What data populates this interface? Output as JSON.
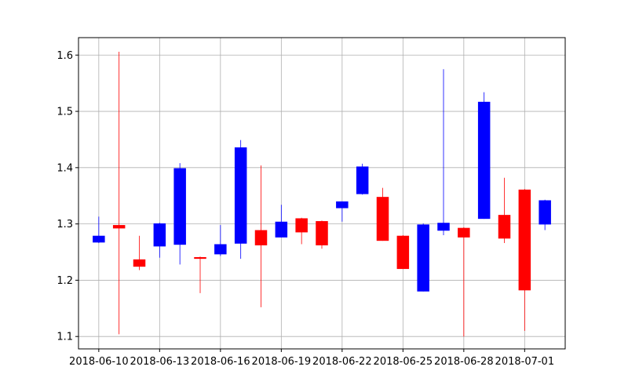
{
  "chart_data": {
    "type": "candlestick",
    "title": "",
    "xlabel": "",
    "ylabel": "",
    "grid": true,
    "colors": {
      "up": "#0000ff",
      "down": "#ff0000"
    },
    "ylim": [
      1.078,
      1.631
    ],
    "xlim": [
      "2018-06-09",
      "2018-07-03"
    ],
    "y_ticks": [
      "1.1",
      "1.2",
      "1.3",
      "1.4",
      "1.5",
      "1.6"
    ],
    "x_ticks": [
      "2018-06-10",
      "2018-06-13",
      "2018-06-16",
      "2018-06-19",
      "2018-06-22",
      "2018-06-25",
      "2018-06-28",
      "2018-07-01"
    ],
    "candles": [
      {
        "date": "2018-06-10",
        "open": 1.267,
        "high": 1.313,
        "low": 1.266,
        "close": 1.279
      },
      {
        "date": "2018-06-11",
        "open": 1.298,
        "high": 1.606,
        "low": 1.104,
        "close": 1.292
      },
      {
        "date": "2018-06-12",
        "open": 1.237,
        "high": 1.279,
        "low": 1.218,
        "close": 1.224
      },
      {
        "date": "2018-06-13",
        "open": 1.26,
        "high": 1.302,
        "low": 1.24,
        "close": 1.301
      },
      {
        "date": "2018-06-14",
        "open": 1.263,
        "high": 1.408,
        "low": 1.228,
        "close": 1.399
      },
      {
        "date": "2018-06-15",
        "open": 1.241,
        "high": 1.242,
        "low": 1.177,
        "close": 1.238
      },
      {
        "date": "2018-06-16",
        "open": 1.246,
        "high": 1.298,
        "low": 1.243,
        "close": 1.264
      },
      {
        "date": "2018-06-17",
        "open": 1.265,
        "high": 1.449,
        "low": 1.238,
        "close": 1.436
      },
      {
        "date": "2018-06-18",
        "open": 1.289,
        "high": 1.404,
        "low": 1.152,
        "close": 1.262
      },
      {
        "date": "2018-06-19",
        "open": 1.276,
        "high": 1.334,
        "low": 1.276,
        "close": 1.304
      },
      {
        "date": "2018-06-20",
        "open": 1.31,
        "high": 1.311,
        "low": 1.264,
        "close": 1.285
      },
      {
        "date": "2018-06-21",
        "open": 1.305,
        "high": 1.306,
        "low": 1.256,
        "close": 1.262
      },
      {
        "date": "2018-06-22",
        "open": 1.328,
        "high": 1.34,
        "low": 1.304,
        "close": 1.34
      },
      {
        "date": "2018-06-23",
        "open": 1.353,
        "high": 1.407,
        "low": 1.352,
        "close": 1.402
      },
      {
        "date": "2018-06-24",
        "open": 1.348,
        "high": 1.364,
        "low": 1.27,
        "close": 1.27
      },
      {
        "date": "2018-06-25",
        "open": 1.279,
        "high": 1.28,
        "low": 1.22,
        "close": 1.22
      },
      {
        "date": "2018-06-26",
        "open": 1.18,
        "high": 1.301,
        "low": 1.18,
        "close": 1.299
      },
      {
        "date": "2018-06-27",
        "open": 1.288,
        "high": 1.575,
        "low": 1.28,
        "close": 1.302
      },
      {
        "date": "2018-06-28",
        "open": 1.293,
        "high": 1.294,
        "low": 1.1,
        "close": 1.276
      },
      {
        "date": "2018-06-29",
        "open": 1.309,
        "high": 1.534,
        "low": 1.309,
        "close": 1.517
      },
      {
        "date": "2018-06-30",
        "open": 1.316,
        "high": 1.382,
        "low": 1.266,
        "close": 1.274
      },
      {
        "date": "2018-07-01",
        "open": 1.361,
        "high": 1.362,
        "low": 1.11,
        "close": 1.182
      },
      {
        "date": "2018-07-02",
        "open": 1.299,
        "high": 1.343,
        "low": 1.289,
        "close": 1.342
      }
    ]
  }
}
